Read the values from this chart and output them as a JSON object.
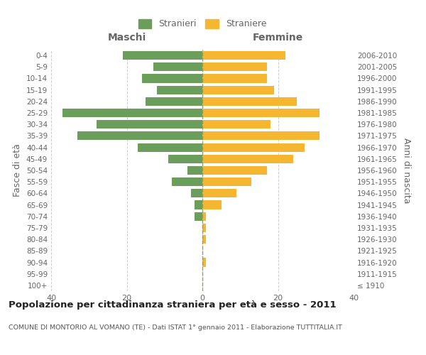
{
  "age_groups": [
    "100+",
    "95-99",
    "90-94",
    "85-89",
    "80-84",
    "75-79",
    "70-74",
    "65-69",
    "60-64",
    "55-59",
    "50-54",
    "45-49",
    "40-44",
    "35-39",
    "30-34",
    "25-29",
    "20-24",
    "15-19",
    "10-14",
    "5-9",
    "0-4"
  ],
  "birth_years": [
    "≤ 1910",
    "1911-1915",
    "1916-1920",
    "1921-1925",
    "1926-1930",
    "1931-1935",
    "1936-1940",
    "1941-1945",
    "1946-1950",
    "1951-1955",
    "1956-1960",
    "1961-1965",
    "1966-1970",
    "1971-1975",
    "1976-1980",
    "1981-1985",
    "1986-1990",
    "1991-1995",
    "1996-2000",
    "2001-2005",
    "2006-2010"
  ],
  "maschi": [
    0,
    0,
    0,
    0,
    0,
    0,
    2,
    2,
    3,
    8,
    4,
    9,
    17,
    33,
    28,
    37,
    15,
    12,
    16,
    13,
    21
  ],
  "femmine": [
    0,
    0,
    1,
    0,
    1,
    1,
    1,
    5,
    9,
    13,
    17,
    24,
    27,
    31,
    18,
    31,
    25,
    19,
    17,
    17,
    22
  ],
  "color_maschi": "#6a9e5a",
  "color_femmine": "#f5b731",
  "xlim": 40,
  "title": "Popolazione per cittadinanza straniera per età e sesso - 2011",
  "subtitle": "COMUNE DI MONTORIO AL VOMANO (TE) - Dati ISTAT 1° gennaio 2011 - Elaborazione TUTTITALIA.IT",
  "ylabel_left": "Fasce di età",
  "ylabel_right": "Anni di nascita",
  "header_maschi": "Maschi",
  "header_femmine": "Femmine",
  "legend_maschi": "Stranieri",
  "legend_femmine": "Straniere",
  "background_color": "#ffffff",
  "grid_color": "#cccccc",
  "label_color": "#666666",
  "title_color": "#222222",
  "subtitle_color": "#555555"
}
